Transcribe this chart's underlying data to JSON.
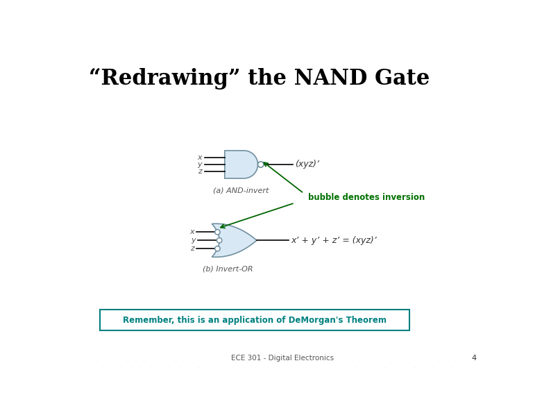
{
  "title": "“Redrawing” the NAND Gate",
  "title_fontsize": 22,
  "title_color": "#000000",
  "footer_text": "ECE 301 - Digital Electronics",
  "footer_page": "4",
  "remember_text": "Remember, this is an application of DeMorgan's Theorem",
  "remember_color": "#008080",
  "remember_box_color": "#008080",
  "bubble_text": "bubble denotes inversion",
  "bubble_color": "#007000",
  "and_gate_label": "(a) AND-invert",
  "or_gate_label": "(b) Invert-OR",
  "and_output_label": "(xyz)’",
  "or_output_label": "x’ + y’ + z’ = (xyz)’",
  "input_labels": [
    "x",
    "y",
    "z"
  ],
  "gate_fill": "#d8e8f4",
  "gate_edge": "#7090a0",
  "bubble_fill": "#ffffff",
  "bubble_edge": "#7090a0",
  "wire_color": "#000000",
  "arrow_color": "#006400",
  "label_color": "#555555",
  "output_label_color": "#333333"
}
